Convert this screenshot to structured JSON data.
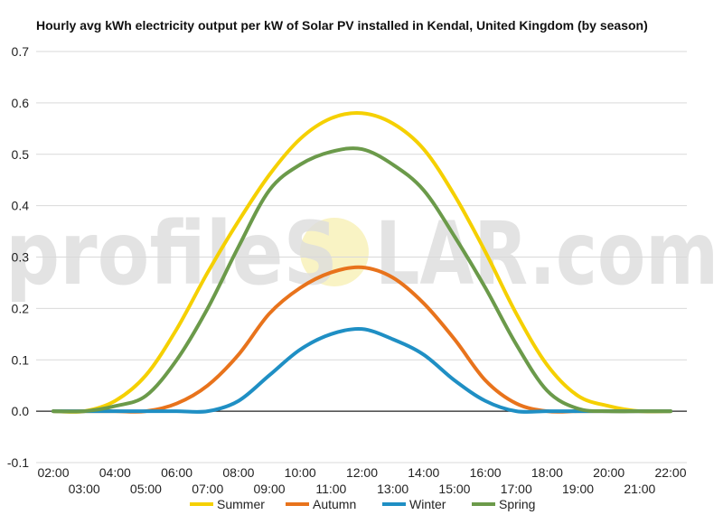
{
  "watermark": {
    "text_left": "profileS",
    "text_right": "LAR.com"
  },
  "chart_data": {
    "type": "line",
    "title": "Hourly avg kWh electricity output per kW of Solar PV installed in Kendal, United Kingdom (by season)",
    "xlabel": "",
    "ylabel": "",
    "ylim": [
      -0.1,
      0.7
    ],
    "yticks": [
      "-0.1",
      "0.0",
      "0.1",
      "0.2",
      "0.3",
      "0.4",
      "0.5",
      "0.6",
      "0.7"
    ],
    "grid": true,
    "legend_position": "bottom",
    "categories": [
      "02:00",
      "03:00",
      "04:00",
      "05:00",
      "06:00",
      "07:00",
      "08:00",
      "09:00",
      "10:00",
      "11:00",
      "12:00",
      "13:00",
      "14:00",
      "15:00",
      "16:00",
      "17:00",
      "18:00",
      "19:00",
      "20:00",
      "21:00",
      "22:00"
    ],
    "series": [
      {
        "name": "Summer",
        "color": "#f5d000",
        "values": [
          0.0,
          0.0,
          0.02,
          0.07,
          0.16,
          0.27,
          0.37,
          0.46,
          0.53,
          0.57,
          0.58,
          0.56,
          0.51,
          0.42,
          0.31,
          0.19,
          0.09,
          0.03,
          0.01,
          0.0,
          0.0
        ]
      },
      {
        "name": "Autumn",
        "color": "#e8731c",
        "values": [
          0.0,
          0.0,
          0.0,
          0.0,
          0.015,
          0.05,
          0.11,
          0.19,
          0.24,
          0.27,
          0.28,
          0.26,
          0.21,
          0.14,
          0.06,
          0.015,
          0.0,
          0.0,
          0.0,
          0.0,
          0.0
        ]
      },
      {
        "name": "Winter",
        "color": "#1f8fc4",
        "values": [
          0.0,
          0.0,
          0.0,
          0.0,
          0.0,
          0.0,
          0.02,
          0.07,
          0.12,
          0.15,
          0.16,
          0.14,
          0.11,
          0.06,
          0.02,
          0.0,
          0.0,
          0.0,
          0.0,
          0.0,
          0.0
        ]
      },
      {
        "name": "Spring",
        "color": "#6b9a4a",
        "values": [
          0.0,
          0.0,
          0.01,
          0.03,
          0.1,
          0.2,
          0.32,
          0.43,
          0.48,
          0.505,
          0.51,
          0.48,
          0.43,
          0.34,
          0.24,
          0.13,
          0.04,
          0.005,
          0.0,
          0.0,
          0.0
        ]
      }
    ]
  }
}
